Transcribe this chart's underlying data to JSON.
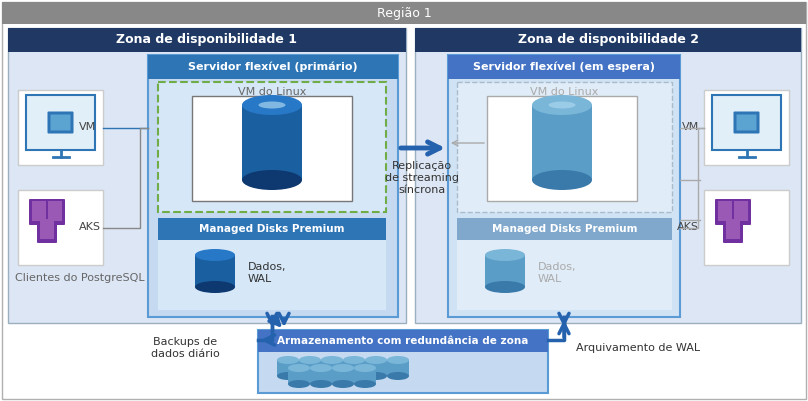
{
  "title_region": "Região 1",
  "zone1_title": "Zona de disponibilidade 1",
  "zone2_title": "Zona de disponibilidade 2",
  "server1_title": "Servidor flexível (primário)",
  "server2_title": "Servidor flexível (em espera)",
  "vm_linux_label": "VM do Linux",
  "managed_disks_label": "Managed Disks Premium",
  "dados_wal_label": "Dados,\nWAL",
  "replication_label": "Replicação\nde streaming\nsíncrona",
  "vm_label": "VM",
  "aks_label": "AKS",
  "clients_label": "Clientes do PostgreSQL",
  "storage_title": "Armazenamento com redundância de zona",
  "backup_label": "Backups de\ndados diário",
  "archive_label": "Arquivamento de WAL",
  "col_dark_blue": "#1f3864",
  "col_med_blue": "#2e75b6",
  "col_light_blue_bg": "#c5d9f1",
  "col_zone_bg": "#dce6f4",
  "col_server_bg": "#c5d9f1",
  "col_vm_box_bg": "#d9e6f5",
  "col_managed_bg": "#dce6f4",
  "col_gray_header": "#808080",
  "col_arrow_blue": "#2562ae",
  "col_green_dash": "#70ad47",
  "col_white": "#ffffff",
  "col_region_border": "#aaaaaa",
  "col_zone_border": "#5b7faa",
  "col_server_border": "#5b9bd5",
  "col_managed_header": "#2e75b6",
  "col_storage_header": "#4472c4",
  "col_storage_bg": "#c5d9f1"
}
